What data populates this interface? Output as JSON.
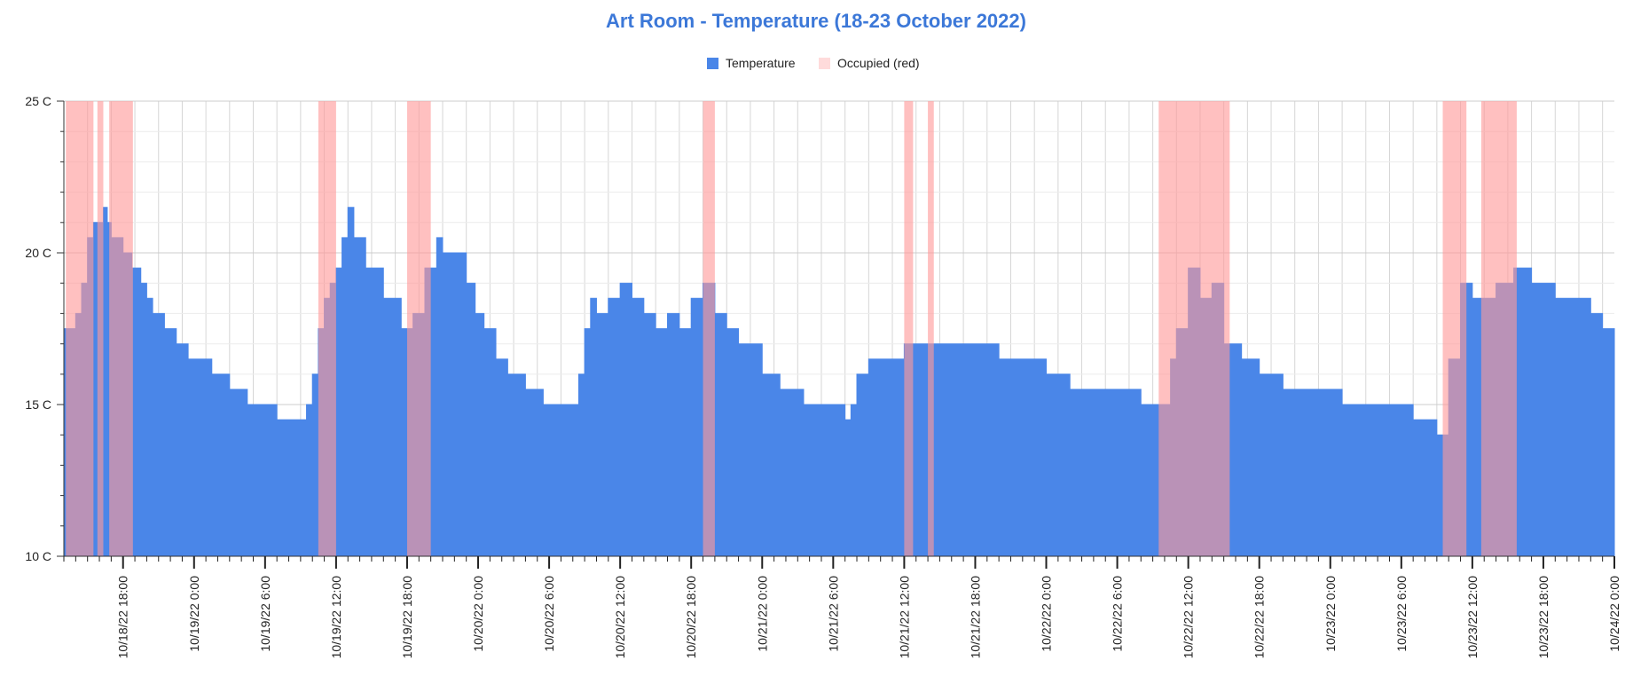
{
  "chart_data": {
    "type": "area",
    "title": "Art Room - Temperature (18-23 October 2022)",
    "xlabel": "",
    "ylabel": "",
    "xlim": [
      "2022-10-18 13:00",
      "2022-10-24 00:00"
    ],
    "ylim": [
      10,
      25
    ],
    "y_ticks": [
      10,
      15,
      20,
      25
    ],
    "y_tick_labels": [
      "10 C",
      "15 C",
      "20 C",
      "25 C"
    ],
    "x_tick_labels": [
      "10/18/22 18:00",
      "10/19/22 0:00",
      "10/19/22 6:00",
      "10/19/22 12:00",
      "10/19/22 18:00",
      "10/20/22 0:00",
      "10/20/22 6:00",
      "10/20/22 12:00",
      "10/20/22 18:00",
      "10/21/22 0:00",
      "10/21/22 6:00",
      "10/21/22 12:00",
      "10/21/22 18:00",
      "10/22/22 0:00",
      "10/22/22 6:00",
      "10/22/22 12:00",
      "10/22/22 18:00",
      "10/23/22 0:00",
      "10/23/22 6:00",
      "10/23/22 12:00",
      "10/23/22 18:00",
      "10/24/22 0:00"
    ],
    "grid": true,
    "legend_position": "top",
    "legend": [
      "Temperature",
      "Occupied (red)"
    ],
    "colors": {
      "temperature": "#4A86E8",
      "occupied": "#FF9999",
      "title": "#3C78D8"
    },
    "series": [
      {
        "name": "Temperature",
        "x": [
          "2022-10-18 13:00",
          "2022-10-18 13:30",
          "2022-10-18 14:00",
          "2022-10-18 14:30",
          "2022-10-18 15:00",
          "2022-10-18 15:30",
          "2022-10-18 16:00",
          "2022-10-18 16:20",
          "2022-10-18 16:40",
          "2022-10-18 17:00",
          "2022-10-18 17:30",
          "2022-10-18 18:00",
          "2022-10-18 18:45",
          "2022-10-18 19:30",
          "2022-10-18 20:00",
          "2022-10-18 20:30",
          "2022-10-18 21:30",
          "2022-10-18 22:30",
          "2022-10-18 23:30",
          "2022-10-19 00:30",
          "2022-10-19 01:30",
          "2022-10-19 03:00",
          "2022-10-19 04:30",
          "2022-10-19 07:00",
          "2022-10-19 09:00",
          "2022-10-19 09:30",
          "2022-10-19 10:00",
          "2022-10-19 10:30",
          "2022-10-19 11:00",
          "2022-10-19 11:30",
          "2022-10-19 12:00",
          "2022-10-19 12:30",
          "2022-10-19 13:00",
          "2022-10-19 13:30",
          "2022-10-19 14:30",
          "2022-10-19 16:00",
          "2022-10-19 17:30",
          "2022-10-19 18:30",
          "2022-10-19 19:30",
          "2022-10-19 20:30",
          "2022-10-19 21:00",
          "2022-10-19 21:30",
          "2022-10-19 23:00",
          "2022-10-19 23:45",
          "2022-10-20 00:30",
          "2022-10-20 01:30",
          "2022-10-20 02:30",
          "2022-10-20 04:00",
          "2022-10-20 05:30",
          "2022-10-20 07:30",
          "2022-10-20 08:30",
          "2022-10-20 09:00",
          "2022-10-20 09:30",
          "2022-10-20 10:00",
          "2022-10-20 11:00",
          "2022-10-20 12:00",
          "2022-10-20 13:00",
          "2022-10-20 14:00",
          "2022-10-20 15:00",
          "2022-10-20 16:00",
          "2022-10-20 17:00",
          "2022-10-20 18:00",
          "2022-10-20 19:00",
          "2022-10-20 20:00",
          "2022-10-20 21:00",
          "2022-10-20 22:00",
          "2022-10-21 00:00",
          "2022-10-21 01:30",
          "2022-10-21 03:30",
          "2022-10-21 06:00",
          "2022-10-21 07:00",
          "2022-10-21 07:30",
          "2022-10-21 08:00",
          "2022-10-21 09:00",
          "2022-10-21 10:00",
          "2022-10-21 11:00",
          "2022-10-21 12:00",
          "2022-10-21 14:00",
          "2022-10-21 16:00",
          "2022-10-21 18:00",
          "2022-10-21 20:00",
          "2022-10-21 22:00",
          "2022-10-22 00:00",
          "2022-10-22 02:00",
          "2022-10-22 05:00",
          "2022-10-22 08:00",
          "2022-10-22 09:30",
          "2022-10-22 10:30",
          "2022-10-22 11:00",
          "2022-10-22 12:00",
          "2022-10-22 13:00",
          "2022-10-22 14:00",
          "2022-10-22 15:00",
          "2022-10-22 16:30",
          "2022-10-22 18:00",
          "2022-10-22 20:00",
          "2022-10-22 22:00",
          "2022-10-23 01:00",
          "2022-10-23 04:00",
          "2022-10-23 07:00",
          "2022-10-23 08:00",
          "2022-10-23 09:00",
          "2022-10-23 10:00",
          "2022-10-23 11:00",
          "2022-10-23 12:00",
          "2022-10-23 13:00",
          "2022-10-23 14:00",
          "2022-10-23 15:30",
          "2022-10-23 17:00",
          "2022-10-23 19:00",
          "2022-10-23 21:00",
          "2022-10-23 22:00",
          "2022-10-23 23:00",
          "2022-10-24 00:00"
        ],
        "y": [
          17.5,
          17.5,
          18.0,
          19.0,
          20.5,
          21.0,
          21.0,
          21.5,
          21.0,
          20.5,
          20.5,
          20.0,
          19.5,
          19.0,
          18.5,
          18.0,
          17.5,
          17.0,
          16.5,
          16.5,
          16.0,
          15.5,
          15.0,
          14.5,
          14.5,
          15.0,
          16.0,
          17.5,
          18.5,
          19.0,
          19.5,
          20.5,
          21.5,
          20.5,
          19.5,
          18.5,
          17.5,
          18.0,
          19.5,
          20.5,
          20.0,
          20.0,
          19.0,
          18.0,
          17.5,
          16.5,
          16.0,
          15.5,
          15.0,
          15.0,
          16.0,
          17.5,
          18.5,
          18.0,
          18.5,
          19.0,
          18.5,
          18.0,
          17.5,
          18.0,
          17.5,
          18.5,
          19.0,
          18.0,
          17.5,
          17.0,
          16.0,
          15.5,
          15.0,
          15.0,
          14.5,
          15.0,
          16.0,
          16.5,
          16.5,
          16.5,
          17.0,
          17.0,
          17.0,
          17.0,
          16.5,
          16.5,
          16.0,
          15.5,
          15.5,
          15.0,
          15.0,
          16.5,
          17.5,
          19.5,
          18.5,
          19.0,
          17.0,
          16.5,
          16.0,
          15.5,
          15.5,
          15.0,
          15.0,
          14.5,
          14.5,
          14.0,
          16.5,
          19.0,
          18.5,
          18.5,
          19.0,
          19.5,
          19.0,
          18.5,
          18.5,
          18.0,
          17.5,
          17.0
        ]
      }
    ],
    "occupied_intervals": [
      [
        "2022-10-18 13:10",
        "2022-10-18 15:30"
      ],
      [
        "2022-10-18 15:50",
        "2022-10-18 16:20"
      ],
      [
        "2022-10-18 16:50",
        "2022-10-18 18:50"
      ],
      [
        "2022-10-19 10:30",
        "2022-10-19 12:00"
      ],
      [
        "2022-10-19 18:00",
        "2022-10-19 20:00"
      ],
      [
        "2022-10-20 19:00",
        "2022-10-20 20:00"
      ],
      [
        "2022-10-21 12:00",
        "2022-10-21 12:45"
      ],
      [
        "2022-10-21 14:00",
        "2022-10-21 14:30"
      ],
      [
        "2022-10-22 09:30",
        "2022-10-22 15:30"
      ],
      [
        "2022-10-23 09:30",
        "2022-10-23 11:30"
      ],
      [
        "2022-10-23 12:45",
        "2022-10-23 15:45"
      ]
    ]
  }
}
